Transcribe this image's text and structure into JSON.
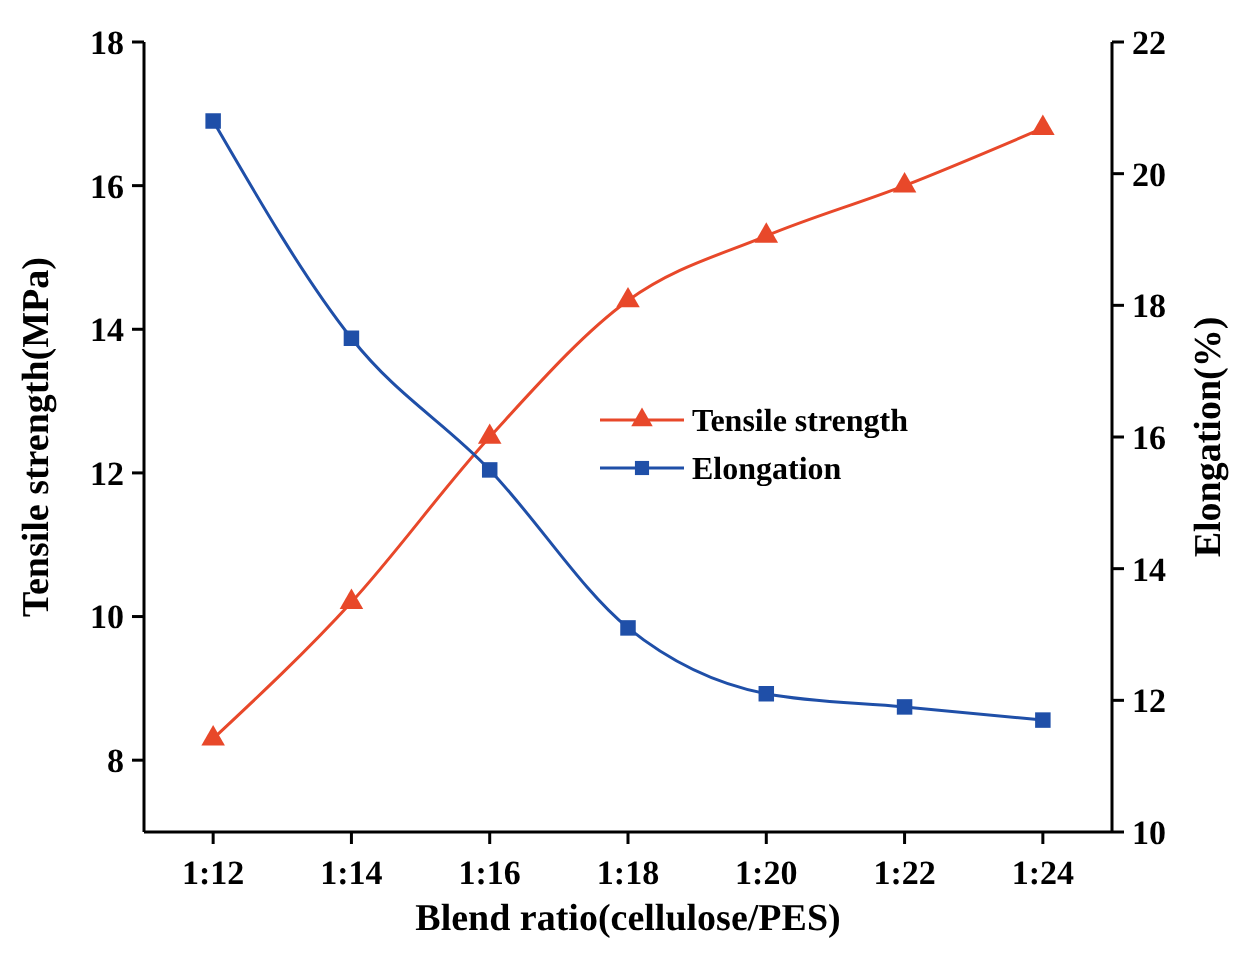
{
  "chart_data": {
    "type": "line",
    "xlabel": "Blend ratio(cellulose/PES)",
    "ylabel": "Tensile strength(MPa)",
    "y2label": "Elongation(%)",
    "categories": [
      "1:12",
      "1:14",
      "1:16",
      "1:18",
      "1:20",
      "1:22",
      "1:24"
    ],
    "series": [
      {
        "name": "Tensile strength",
        "color": "#e8482a",
        "marker": "triangle",
        "values": [
          8.3,
          10.2,
          12.5,
          14.4,
          15.3,
          16.0,
          16.8
        ]
      },
      {
        "name": "Elongation",
        "color": "#1f4fa8",
        "marker": "square",
        "axis": "y2",
        "values": [
          20.8,
          17.5,
          15.5,
          13.1,
          12.1,
          11.9,
          11.7
        ]
      }
    ],
    "ylim": [
      7,
      18
    ],
    "yticks": [
      8,
      10,
      12,
      14,
      16,
      18
    ],
    "y2lim": [
      10,
      22
    ],
    "y2ticks": [
      10,
      12,
      14,
      16,
      18,
      20,
      22
    ],
    "grid": false,
    "legend": "center"
  }
}
